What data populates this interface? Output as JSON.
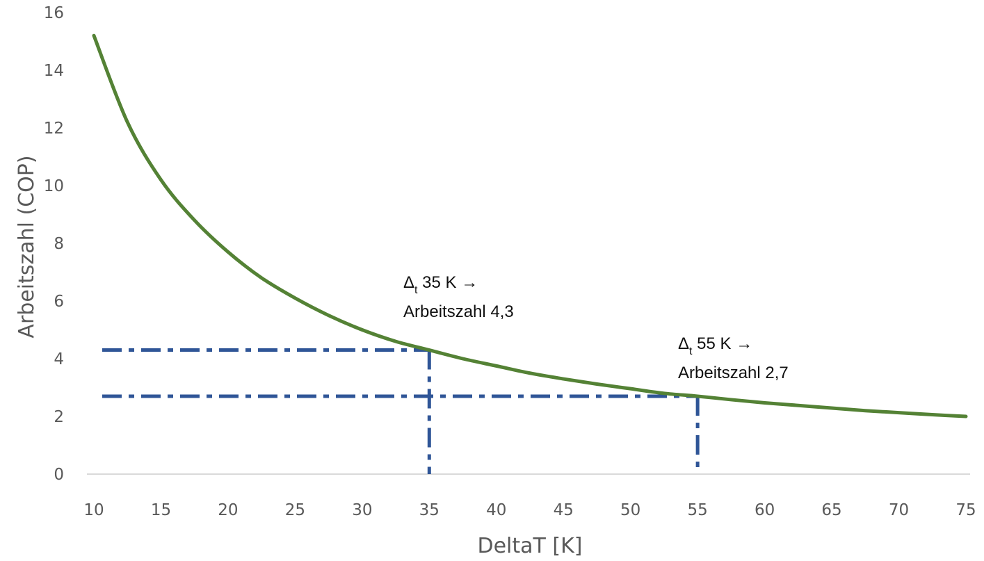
{
  "chart_data": {
    "type": "line",
    "xlabel": "DeltaT [K]",
    "ylabel": "Arbeitszahl (COP)",
    "xlim": [
      10,
      75
    ],
    "ylim": [
      0,
      16
    ],
    "x_ticks": [
      "10",
      "15",
      "20",
      "25",
      "30",
      "35",
      "40",
      "45",
      "50",
      "55",
      "60",
      "65",
      "70",
      "75"
    ],
    "y_ticks": [
      "0",
      "2",
      "4",
      "6",
      "8",
      "10",
      "12",
      "14",
      "16"
    ],
    "grid": false,
    "legend": "none",
    "series": [
      {
        "color": "#548235",
        "x": [
          10,
          12.5,
          15,
          17.5,
          20,
          22.5,
          25,
          27.5,
          30,
          32.5,
          35,
          37.5,
          40,
          42.5,
          45,
          47.5,
          50,
          52.5,
          55,
          57.5,
          60,
          62.5,
          65,
          67.5,
          70,
          72.5,
          75
        ],
        "y": [
          15.2,
          12.2,
          10.2,
          8.8,
          7.7,
          6.8,
          6.1,
          5.5,
          5.0,
          4.6,
          4.3,
          4.0,
          3.75,
          3.5,
          3.3,
          3.12,
          2.96,
          2.8,
          2.7,
          2.58,
          2.47,
          2.38,
          2.29,
          2.2,
          2.13,
          2.06,
          2.0
        ]
      }
    ],
    "reference_lines": {
      "color": "#2F5597",
      "points": [
        {
          "x": 35,
          "y": 4.3
        },
        {
          "x": 55,
          "y": 2.7
        }
      ]
    },
    "annotations": [
      {
        "delta": "Δ",
        "sub": "t",
        "line1": " 35 K →",
        "line2": "Arbeitszahl 4,3"
      },
      {
        "delta": "Δ",
        "sub": "t",
        "line1": " 55 K →",
        "line2": "Arbeitszahl 2,7"
      }
    ]
  }
}
